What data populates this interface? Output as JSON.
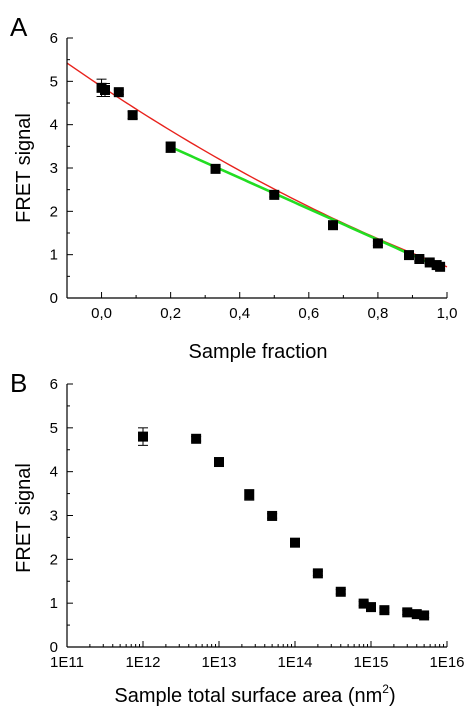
{
  "chart_data": [
    {
      "panel": "A",
      "type": "scatter",
      "xlabel": "Sample fraction",
      "ylabel": "FRET signal",
      "xlim": [
        -0.1,
        1.0
      ],
      "ylim": [
        0,
        6
      ],
      "x_ticks": [
        0.0,
        0.2,
        0.4,
        0.6,
        0.8,
        1.0
      ],
      "x_tick_labels": [
        "0,0",
        "0,2",
        "0,4",
        "0,6",
        "0,8",
        "1,0"
      ],
      "y_ticks": [
        0,
        1,
        2,
        3,
        4,
        5,
        6
      ],
      "y_tick_labels": [
        "0",
        "1",
        "2",
        "3",
        "4",
        "5",
        "6"
      ],
      "points": [
        {
          "x": 0.0,
          "y": 4.85,
          "err": 0.2
        },
        {
          "x": 0.01,
          "y": 4.8,
          "err": 0.15
        },
        {
          "x": 0.05,
          "y": 4.75,
          "err": 0.05
        },
        {
          "x": 0.09,
          "y": 4.22,
          "err": 0.08
        },
        {
          "x": 0.2,
          "y": 3.48,
          "err": 0.12
        },
        {
          "x": 0.33,
          "y": 2.98,
          "err": 0.05
        },
        {
          "x": 0.5,
          "y": 2.38,
          "err": 0.05
        },
        {
          "x": 0.67,
          "y": 1.68,
          "err": 0.05
        },
        {
          "x": 0.8,
          "y": 1.26,
          "err": 0.05
        },
        {
          "x": 0.89,
          "y": 0.99,
          "err": 0.05
        },
        {
          "x": 0.92,
          "y": 0.9,
          "err": 0.05
        },
        {
          "x": 0.95,
          "y": 0.82,
          "err": 0.05
        },
        {
          "x": 0.97,
          "y": 0.76,
          "err": 0.05
        },
        {
          "x": 0.98,
          "y": 0.72,
          "err": 0.05
        }
      ],
      "fit_curves": [
        {
          "color": "#e8221c",
          "x_range": [
            -0.1,
            1.0
          ],
          "a": 4.88,
          "b": -5.31,
          "c": 1.15
        },
        {
          "color": "#22dd22",
          "x_range": [
            0.2,
            0.98
          ],
          "a": 4.2,
          "b": -3.57,
          "c": 0.0
        }
      ],
      "marker_color": "#000000"
    },
    {
      "panel": "B",
      "type": "scatter",
      "xlabel": "Sample total surface area  (nm",
      "xlabel_superscript": "2",
      "xlabel_suffix": ")",
      "ylabel": "FRET signal",
      "x_scale": "log",
      "xlim": [
        100000000000.0,
        1e+16
      ],
      "ylim": [
        0,
        6
      ],
      "x_ticks": [
        100000000000.0,
        1000000000000.0,
        10000000000000.0,
        100000000000000.0,
        1000000000000000.0,
        1e+16
      ],
      "x_tick_labels": [
        "1E11",
        "1E12",
        "1E13",
        "1E14",
        "1E15",
        "1E16"
      ],
      "y_ticks": [
        0,
        1,
        2,
        3,
        4,
        5,
        6
      ],
      "y_tick_labels": [
        "0",
        "1",
        "2",
        "3",
        "4",
        "5",
        "6"
      ],
      "points": [
        {
          "x": 1000000000000.0,
          "y": 4.8,
          "err": 0.2
        },
        {
          "x": 5000000000000.0,
          "y": 4.75,
          "err": 0.05
        },
        {
          "x": 10000000000000.0,
          "y": 4.22,
          "err": 0.08
        },
        {
          "x": 25000000000000.0,
          "y": 3.47,
          "err": 0.12
        },
        {
          "x": 50000000000000.0,
          "y": 2.99,
          "err": 0.05
        },
        {
          "x": 100000000000000.0,
          "y": 2.38,
          "err": 0.05
        },
        {
          "x": 200000000000000.0,
          "y": 1.68,
          "err": 0.05
        },
        {
          "x": 400000000000000.0,
          "y": 1.26,
          "err": 0.05
        },
        {
          "x": 800000000000000.0,
          "y": 0.99,
          "err": 0.05
        },
        {
          "x": 1000000000000000.0,
          "y": 0.91,
          "err": 0.05
        },
        {
          "x": 1500000000000000.0,
          "y": 0.84,
          "err": 0.05
        },
        {
          "x": 3000000000000000.0,
          "y": 0.79,
          "err": 0.05
        },
        {
          "x": 4000000000000000.0,
          "y": 0.75,
          "err": 0.05
        },
        {
          "x": 5000000000000000.0,
          "y": 0.72,
          "err": 0.05
        }
      ],
      "marker_color": "#000000"
    }
  ]
}
